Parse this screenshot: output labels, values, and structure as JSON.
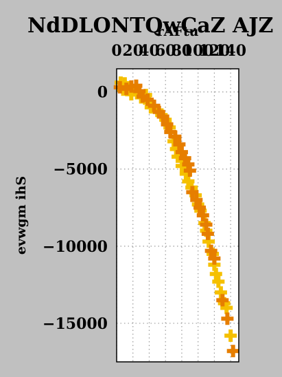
{
  "chart_data": {
    "type": "scatter",
    "title": "NdDLONTQwCaZ AJZ",
    "xlabel": "rAFtu",
    "ylabel": "evwgm ihS",
    "xlim": [
      0,
      150
    ],
    "ylim": [
      -17500,
      1500
    ],
    "xticks": [
      0,
      20,
      40,
      60,
      80,
      100,
      120,
      140
    ],
    "xtick_labels": [
      "0",
      "20",
      "40",
      "60",
      "80",
      "100",
      "120",
      "140"
    ],
    "yticks": [
      0,
      -5000,
      -10000,
      -15000
    ],
    "ytick_labels": [
      "0",
      "−5000",
      "−10000",
      "−15000"
    ],
    "grid": true,
    "marker": "plus",
    "series": [
      {
        "color": "#f5c000",
        "points": [
          [
            5,
            600
          ],
          [
            10,
            550
          ],
          [
            8,
            150
          ],
          [
            15,
            300
          ],
          [
            22,
            100
          ],
          [
            18,
            -150
          ],
          [
            30,
            -350
          ],
          [
            36,
            -200
          ],
          [
            40,
            -700
          ],
          [
            42,
            -1000
          ],
          [
            50,
            -1200
          ],
          [
            55,
            -1500
          ],
          [
            60,
            -1800
          ],
          [
            65,
            -2300
          ],
          [
            70,
            -3200
          ],
          [
            73,
            -3700
          ],
          [
            75,
            -4200
          ],
          [
            80,
            -4800
          ],
          [
            85,
            -5300
          ],
          [
            88,
            -5800
          ],
          [
            92,
            -6200
          ],
          [
            97,
            -6700
          ],
          [
            100,
            -7300
          ],
          [
            103,
            -7700
          ],
          [
            108,
            -8500
          ],
          [
            110,
            -9000
          ],
          [
            113,
            -9700
          ],
          [
            118,
            -10500
          ],
          [
            120,
            -11200
          ],
          [
            122,
            -11800
          ],
          [
            125,
            -12300
          ],
          [
            128,
            -13000
          ],
          [
            132,
            -13700
          ],
          [
            135,
            -14000
          ],
          [
            140,
            -15800
          ]
        ]
      },
      {
        "color": "#e67e00",
        "points": [
          [
            4,
            300
          ],
          [
            12,
            200
          ],
          [
            18,
            350
          ],
          [
            24,
            400
          ],
          [
            28,
            50
          ],
          [
            32,
            -300
          ],
          [
            38,
            -500
          ],
          [
            46,
            -900
          ],
          [
            52,
            -1300
          ],
          [
            57,
            -1600
          ],
          [
            62,
            -2100
          ],
          [
            66,
            -2600
          ],
          [
            72,
            -2900
          ],
          [
            77,
            -3400
          ],
          [
            80,
            -3900
          ],
          [
            84,
            -4300
          ],
          [
            88,
            -4700
          ],
          [
            90,
            -5100
          ],
          [
            93,
            -6500
          ],
          [
            98,
            -7000
          ],
          [
            102,
            -7500
          ],
          [
            106,
            -8000
          ],
          [
            110,
            -8600
          ],
          [
            112,
            -9200
          ],
          [
            116,
            -10300
          ],
          [
            120,
            -10800
          ],
          [
            130,
            -13500
          ],
          [
            136,
            -14700
          ],
          [
            143,
            -16800
          ]
        ]
      }
    ]
  }
}
